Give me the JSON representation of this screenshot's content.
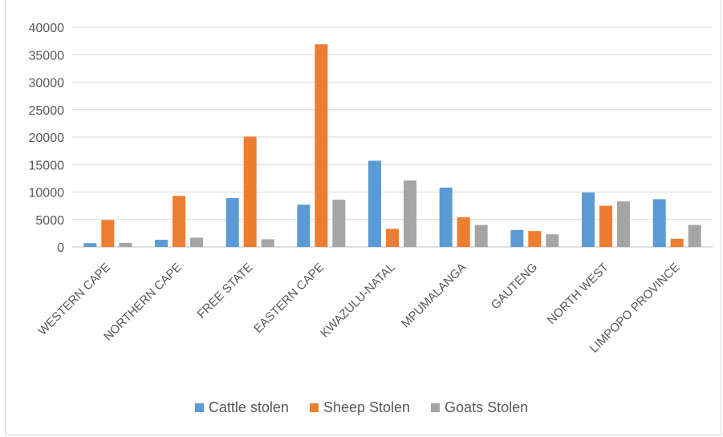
{
  "chart_data": {
    "type": "bar",
    "title": "",
    "xlabel": "",
    "ylabel": "",
    "ylim": [
      0,
      40000
    ],
    "yticks": [
      0,
      5000,
      10000,
      15000,
      20000,
      25000,
      30000,
      35000,
      40000
    ],
    "grid": true,
    "legend_position": "bottom",
    "categories": [
      "WESTERN CAPE",
      "NORTHERN CAPE",
      "FREE STATE",
      "EASTERN CAPE",
      "KWAZULU-NATAL",
      "MPUMALANGA",
      "GAUTENG",
      "NORTH WEST",
      "LIMPOPO PROVINCE"
    ],
    "series": [
      {
        "name": "Cattle stolen",
        "color": "#5b9bd5",
        "values": [
          700,
          1300,
          8900,
          7700,
          15700,
          10800,
          3100,
          9900,
          8700
        ]
      },
      {
        "name": "Sheep Stolen",
        "color": "#ed7d31",
        "values": [
          4900,
          9300,
          20100,
          36900,
          3300,
          5400,
          2900,
          7500,
          1500
        ]
      },
      {
        "name": "Goats Stolen",
        "color": "#a5a5a5",
        "values": [
          750,
          1700,
          1400,
          8600,
          12100,
          4000,
          2300,
          8300,
          4000
        ]
      }
    ]
  }
}
